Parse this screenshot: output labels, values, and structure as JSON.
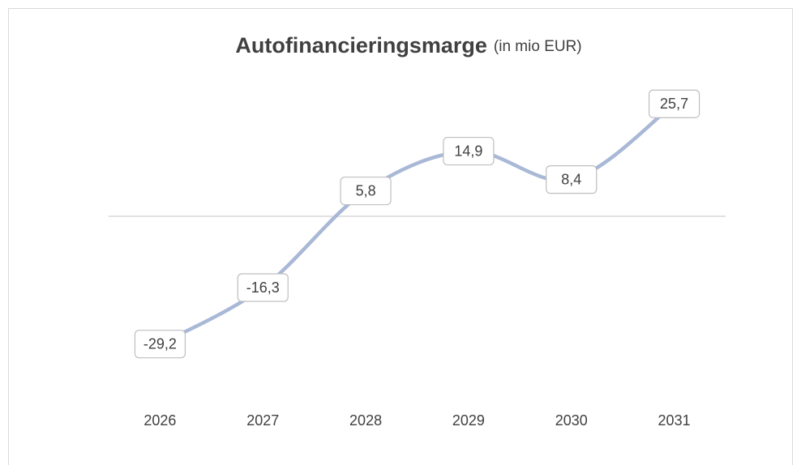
{
  "chart_data": {
    "type": "line",
    "title": "Autofinancieringsmarge",
    "subtitle": "(in mio EUR)",
    "categories": [
      "2026",
      "2027",
      "2028",
      "2029",
      "2030",
      "2031"
    ],
    "values": [
      -29.2,
      -16.3,
      5.8,
      14.9,
      8.4,
      25.7
    ],
    "value_labels": [
      "-29,2",
      "-16,3",
      "5,8",
      "14,9",
      "8,4",
      "25,7"
    ],
    "color": "#a9b8d6",
    "smooth": true,
    "ylim": [
      -40,
      30
    ]
  }
}
